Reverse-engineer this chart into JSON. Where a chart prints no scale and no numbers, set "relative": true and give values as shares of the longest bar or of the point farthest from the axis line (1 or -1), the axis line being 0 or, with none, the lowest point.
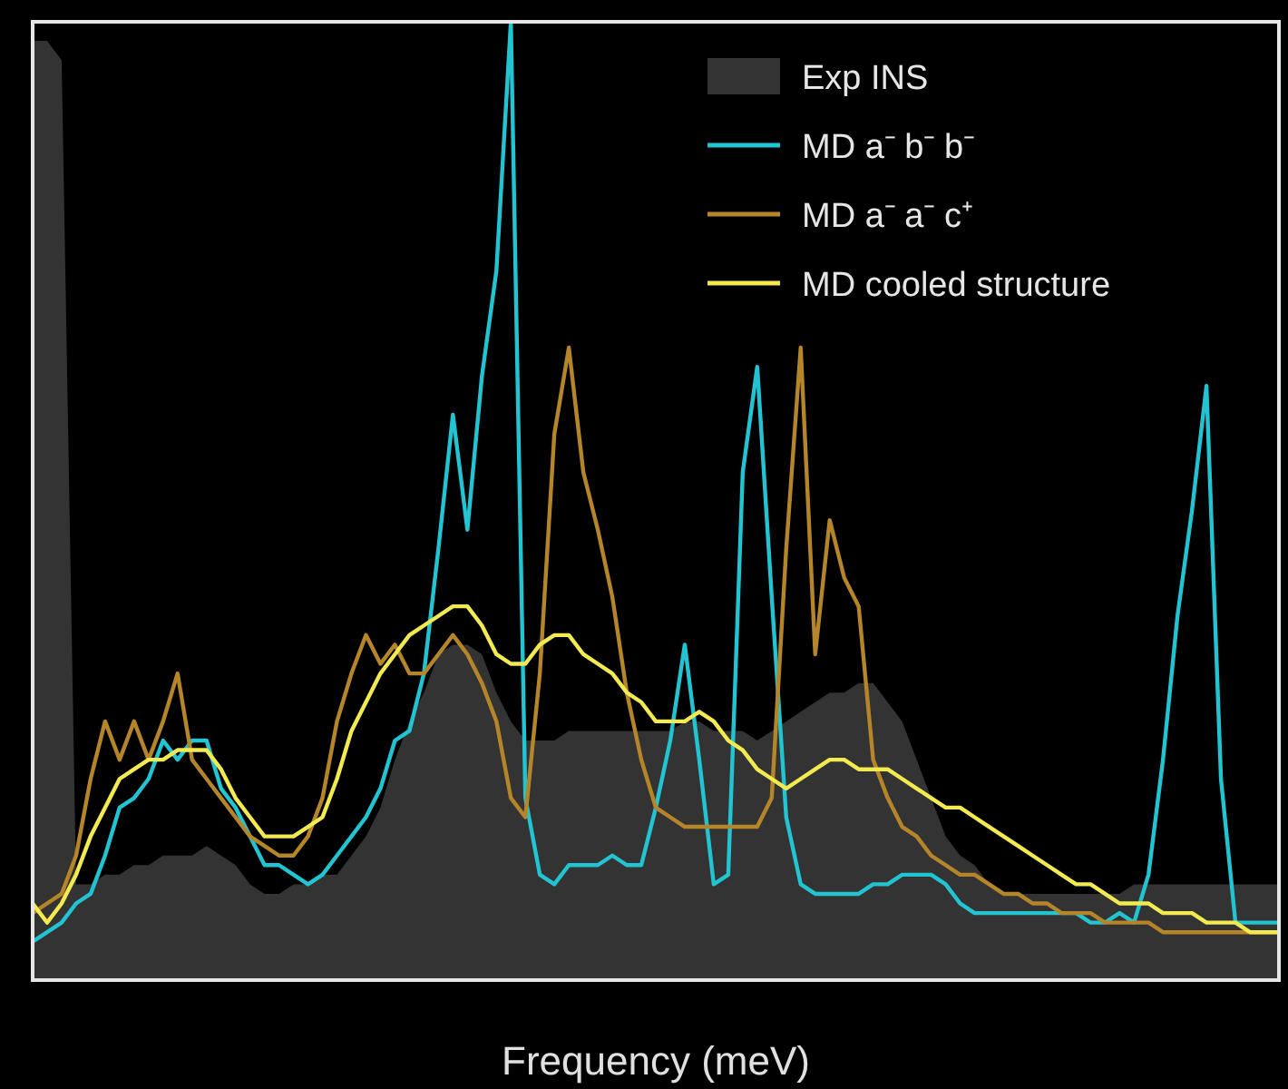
{
  "chart_data": {
    "type": "line",
    "relative": true,
    "xlabel": "Frequency (meV)",
    "legend": "top right",
    "categories": [
      null,
      null,
      null,
      null,
      null,
      null,
      null,
      null,
      null,
      null,
      null,
      null,
      null,
      null,
      null,
      null,
      null,
      null,
      null,
      null,
      null,
      null,
      null,
      null,
      null,
      null,
      null,
      null,
      null,
      null,
      null,
      null,
      null,
      null,
      null,
      null,
      null,
      null,
      null,
      null,
      null,
      null,
      null,
      null,
      null,
      null,
      null,
      null,
      null,
      null,
      null,
      null,
      null,
      null,
      null,
      null,
      null,
      null,
      null,
      null,
      null,
      null,
      null,
      null,
      null,
      null,
      null,
      null,
      null,
      null,
      null,
      null,
      null,
      null,
      null,
      null,
      null,
      null,
      null,
      null,
      null,
      null,
      null,
      null,
      null,
      null,
      null
    ],
    "series": [
      {
        "name": "Exp INS",
        "type": "area",
        "color": "#333333",
        "values": [
          0.98,
          0.98,
          0.96,
          0.1,
          0.1,
          0.11,
          0.11,
          0.12,
          0.12,
          0.13,
          0.13,
          0.13,
          0.14,
          0.13,
          0.12,
          0.1,
          0.09,
          0.09,
          0.1,
          0.1,
          0.11,
          0.11,
          0.13,
          0.15,
          0.18,
          0.23,
          0.27,
          0.3,
          0.34,
          0.35,
          0.35,
          0.34,
          0.3,
          0.27,
          0.25,
          0.25,
          0.25,
          0.26,
          0.26,
          0.26,
          0.26,
          0.26,
          0.26,
          0.26,
          0.26,
          0.27,
          0.27,
          0.26,
          0.26,
          0.26,
          0.25,
          0.26,
          0.27,
          0.28,
          0.29,
          0.3,
          0.3,
          0.31,
          0.31,
          0.29,
          0.27,
          0.23,
          0.19,
          0.15,
          0.13,
          0.12,
          0.1,
          0.09,
          0.09,
          0.09,
          0.09,
          0.09,
          0.09,
          0.09,
          0.09,
          0.09,
          0.1,
          0.1,
          0.1,
          0.1,
          0.1,
          0.1,
          0.1,
          0.1,
          0.1,
          0.1,
          0.1
        ]
      },
      {
        "name": "MD a⁻ b⁻ b⁻",
        "color": "#22c4d2",
        "values": [
          0.04,
          0.05,
          0.06,
          0.08,
          0.09,
          0.13,
          0.18,
          0.19,
          0.21,
          0.25,
          0.23,
          0.25,
          0.25,
          0.2,
          0.18,
          0.15,
          0.12,
          0.12,
          0.11,
          0.1,
          0.11,
          0.13,
          0.15,
          0.17,
          0.2,
          0.25,
          0.26,
          0.32,
          0.45,
          0.59,
          0.47,
          0.63,
          0.74,
          1.0,
          0.19,
          0.11,
          0.1,
          0.12,
          0.12,
          0.12,
          0.13,
          0.12,
          0.12,
          0.18,
          0.25,
          0.35,
          0.23,
          0.1,
          0.11,
          0.53,
          0.64,
          0.4,
          0.17,
          0.1,
          0.09,
          0.09,
          0.09,
          0.09,
          0.1,
          0.1,
          0.11,
          0.11,
          0.11,
          0.1,
          0.08,
          0.07,
          0.07,
          0.07,
          0.07,
          0.07,
          0.07,
          0.07,
          0.07,
          0.06,
          0.06,
          0.07,
          0.06,
          0.11,
          0.23,
          0.38,
          0.49,
          0.62,
          0.21,
          0.06,
          0.06,
          0.06,
          0.06
        ]
      },
      {
        "name": "MD a⁻ a⁻ c⁺",
        "color": "#b5852a",
        "values": [
          0.07,
          0.08,
          0.09,
          0.13,
          0.21,
          0.27,
          0.23,
          0.27,
          0.23,
          0.27,
          0.32,
          0.23,
          0.21,
          0.19,
          0.17,
          0.15,
          0.14,
          0.13,
          0.13,
          0.15,
          0.19,
          0.27,
          0.32,
          0.36,
          0.33,
          0.35,
          0.32,
          0.32,
          0.34,
          0.36,
          0.34,
          0.31,
          0.27,
          0.19,
          0.17,
          0.32,
          0.57,
          0.66,
          0.53,
          0.47,
          0.4,
          0.3,
          0.23,
          0.18,
          0.17,
          0.16,
          0.16,
          0.16,
          0.16,
          0.16,
          0.16,
          0.19,
          0.45,
          0.66,
          0.34,
          0.48,
          0.42,
          0.39,
          0.23,
          0.19,
          0.16,
          0.15,
          0.13,
          0.12,
          0.11,
          0.11,
          0.1,
          0.09,
          0.09,
          0.08,
          0.08,
          0.07,
          0.07,
          0.07,
          0.06,
          0.06,
          0.06,
          0.06,
          0.05,
          0.05,
          0.05,
          0.05,
          0.05,
          0.05,
          0.05,
          0.05,
          0.05
        ]
      },
      {
        "name": "MD cooled structure",
        "color": "#f2ea50",
        "values": [
          0.08,
          0.06,
          0.08,
          0.11,
          0.15,
          0.18,
          0.21,
          0.22,
          0.23,
          0.23,
          0.24,
          0.24,
          0.24,
          0.22,
          0.19,
          0.17,
          0.15,
          0.15,
          0.15,
          0.16,
          0.17,
          0.21,
          0.26,
          0.29,
          0.32,
          0.34,
          0.36,
          0.37,
          0.38,
          0.39,
          0.39,
          0.37,
          0.34,
          0.33,
          0.33,
          0.35,
          0.36,
          0.36,
          0.34,
          0.33,
          0.32,
          0.3,
          0.29,
          0.27,
          0.27,
          0.27,
          0.28,
          0.27,
          0.25,
          0.24,
          0.22,
          0.21,
          0.2,
          0.21,
          0.22,
          0.23,
          0.23,
          0.22,
          0.22,
          0.22,
          0.21,
          0.2,
          0.19,
          0.18,
          0.18,
          0.17,
          0.16,
          0.15,
          0.14,
          0.13,
          0.12,
          0.11,
          0.1,
          0.1,
          0.09,
          0.08,
          0.08,
          0.08,
          0.07,
          0.07,
          0.07,
          0.06,
          0.06,
          0.06,
          0.05,
          0.05,
          0.05
        ]
      }
    ]
  }
}
